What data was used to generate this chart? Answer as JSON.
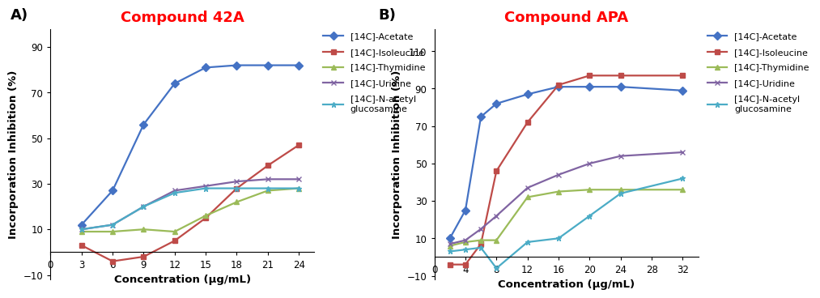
{
  "panel_A": {
    "title": "Compound 42A",
    "xlabel": "Concentration (μg/mL)",
    "ylabel": "Incorporation Inhibition (%)",
    "xlim": [
      0,
      25.5
    ],
    "ylim": [
      -12,
      98
    ],
    "xticks": [
      0,
      3,
      6,
      9,
      12,
      15,
      18,
      21,
      24
    ],
    "yticks": [
      -10,
      10,
      30,
      50,
      70,
      90
    ],
    "series": [
      {
        "x": [
          3,
          6,
          9,
          12,
          15,
          18,
          21,
          24
        ],
        "y": [
          12,
          27,
          56,
          74,
          81,
          82,
          82,
          82
        ],
        "color": "#4472C4",
        "marker": "D",
        "label": "[14C]-Acetate"
      },
      {
        "x": [
          3,
          6,
          9,
          12,
          15,
          18,
          21,
          24
        ],
        "y": [
          3,
          -4,
          -2,
          5,
          15,
          28,
          38,
          47
        ],
        "color": "#BE4B48",
        "marker": "s",
        "label": "[14C]-Isoleucine"
      },
      {
        "x": [
          3,
          6,
          9,
          12,
          15,
          18,
          21,
          24
        ],
        "y": [
          9,
          9,
          10,
          9,
          16,
          22,
          27,
          28
        ],
        "color": "#9BBB59",
        "marker": "^",
        "label": "[14C]-Thymidine"
      },
      {
        "x": [
          3,
          6,
          9,
          12,
          15,
          18,
          21,
          24
        ],
        "y": [
          10,
          12,
          20,
          27,
          29,
          31,
          32,
          32
        ],
        "color": "#8064A2",
        "marker": "x",
        "label": "[14C]-Uridine"
      },
      {
        "x": [
          3,
          6,
          9,
          12,
          15,
          18,
          21,
          24
        ],
        "y": [
          10,
          12,
          20,
          26,
          28,
          28,
          28,
          28
        ],
        "color": "#4BACC6",
        "marker": "*",
        "label": "[14C]-N-acetyl\nglucosamine"
      }
    ]
  },
  "panel_B": {
    "title": "Compound APA",
    "xlabel": "Concentration (μg/mL)",
    "ylabel": "Incorporation Inhibition (%)",
    "xlim": [
      0,
      34
    ],
    "ylim": [
      -12,
      122
    ],
    "xticks": [
      0,
      4,
      8,
      12,
      16,
      20,
      24,
      28,
      32
    ],
    "yticks": [
      -10,
      10,
      30,
      50,
      70,
      90,
      110
    ],
    "series": [
      {
        "x": [
          2,
          4,
          6,
          8,
          12,
          16,
          20,
          24,
          32
        ],
        "y": [
          10,
          25,
          75,
          82,
          87,
          91,
          91,
          91,
          89
        ],
        "color": "#4472C4",
        "marker": "D",
        "label": "[14C]-Acetate"
      },
      {
        "x": [
          2,
          4,
          6,
          8,
          12,
          16,
          20,
          24,
          32
        ],
        "y": [
          -4,
          -4,
          7,
          46,
          72,
          92,
          97,
          97,
          97
        ],
        "color": "#BE4B48",
        "marker": "s",
        "label": "[14C]-Isoleucine"
      },
      {
        "x": [
          2,
          4,
          6,
          8,
          12,
          16,
          20,
          24,
          32
        ],
        "y": [
          6,
          8,
          9,
          9,
          32,
          35,
          36,
          36,
          36
        ],
        "color": "#9BBB59",
        "marker": "^",
        "label": "[14C]-Thymidine"
      },
      {
        "x": [
          2,
          4,
          6,
          8,
          12,
          16,
          20,
          24,
          32
        ],
        "y": [
          7,
          9,
          15,
          22,
          37,
          44,
          50,
          54,
          56
        ],
        "color": "#8064A2",
        "marker": "x",
        "label": "[14C]-Uridine"
      },
      {
        "x": [
          2,
          4,
          6,
          8,
          12,
          16,
          20,
          24,
          32
        ],
        "y": [
          3,
          4,
          5,
          -6,
          8,
          10,
          22,
          34,
          42
        ],
        "color": "#4BACC6",
        "marker": "*",
        "label": "[14C]-N-acetyl\nglucosamine"
      }
    ]
  },
  "label_A": "A)",
  "label_B": "B)",
  "title_color": "#FF0000",
  "title_fontsize": 13,
  "axis_label_fontsize": 9.5,
  "tick_fontsize": 8.5,
  "legend_fontsize": 8,
  "markersize": 5,
  "linewidth": 1.6,
  "bg_color": "#FFFFFF"
}
